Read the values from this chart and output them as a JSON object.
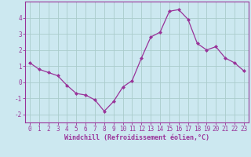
{
  "x": [
    0,
    1,
    2,
    3,
    4,
    5,
    6,
    7,
    8,
    9,
    10,
    11,
    12,
    13,
    14,
    15,
    16,
    17,
    18,
    19,
    20,
    21,
    22,
    23
  ],
  "y": [
    1.2,
    0.8,
    0.6,
    0.4,
    -0.2,
    -0.7,
    -0.8,
    -1.1,
    -1.8,
    -1.2,
    -0.3,
    0.1,
    1.5,
    2.8,
    3.1,
    4.4,
    4.5,
    3.9,
    2.4,
    2.0,
    2.2,
    1.5,
    1.2,
    0.7
  ],
  "line_color": "#993399",
  "marker": "D",
  "marker_size": 2.0,
  "bg_color": "#cce8f0",
  "grid_color": "#aacccc",
  "axis_color": "#993399",
  "tick_color": "#993399",
  "xlabel": "Windchill (Refroidissement éolien,°C)",
  "xlabel_fontsize": 6.0,
  "ylim": [
    -2.5,
    5.0
  ],
  "xlim": [
    -0.5,
    23.5
  ],
  "yticks": [
    -2,
    -1,
    0,
    1,
    2,
    3,
    4
  ],
  "xticks": [
    0,
    1,
    2,
    3,
    4,
    5,
    6,
    7,
    8,
    9,
    10,
    11,
    12,
    13,
    14,
    15,
    16,
    17,
    18,
    19,
    20,
    21,
    22,
    23
  ],
  "tick_fontsize": 5.5
}
